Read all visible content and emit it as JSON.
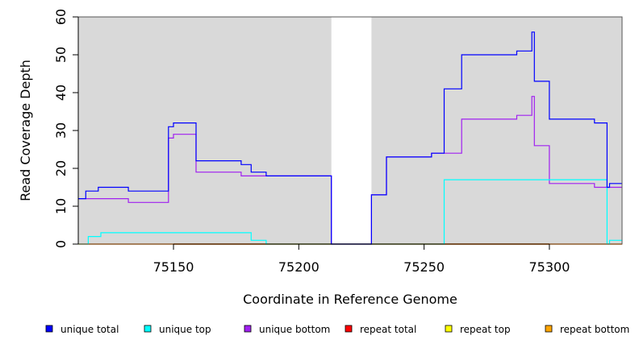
{
  "chart_data": {
    "type": "line",
    "step": true,
    "title": "",
    "xlabel": "Coordinate in Reference Genome",
    "ylabel": "Read Coverage Depth",
    "xlim": [
      75112,
      75329
    ],
    "ylim": [
      0,
      60
    ],
    "xticks": [
      75150,
      75200,
      75250,
      75300
    ],
    "yticks": [
      0,
      10,
      20,
      30,
      40,
      50,
      60
    ],
    "gap_region": [
      75213,
      75229
    ],
    "legend_position": "bottom",
    "series": [
      {
        "name": "unique total",
        "color": "#0000ff",
        "points": [
          [
            75112,
            12
          ],
          [
            75115,
            12
          ],
          [
            75115,
            14
          ],
          [
            75120,
            14
          ],
          [
            75120,
            15
          ],
          [
            75132,
            15
          ],
          [
            75132,
            14
          ],
          [
            75148,
            14
          ],
          [
            75148,
            31
          ],
          [
            75150,
            31
          ],
          [
            75150,
            32
          ],
          [
            75159,
            32
          ],
          [
            75159,
            22
          ],
          [
            75177,
            22
          ],
          [
            75177,
            21
          ],
          [
            75181,
            21
          ],
          [
            75181,
            19
          ],
          [
            75187,
            19
          ],
          [
            75187,
            18
          ],
          [
            75213,
            18
          ],
          [
            75213,
            0
          ],
          [
            75229,
            0
          ],
          [
            75229,
            13
          ],
          [
            75235,
            13
          ],
          [
            75235,
            23
          ],
          [
            75253,
            23
          ],
          [
            75253,
            24
          ],
          [
            75258,
            24
          ],
          [
            75258,
            41
          ],
          [
            75265,
            41
          ],
          [
            75265,
            50
          ],
          [
            75287,
            50
          ],
          [
            75287,
            51
          ],
          [
            75293,
            51
          ],
          [
            75293,
            56
          ],
          [
            75294,
            56
          ],
          [
            75294,
            43
          ],
          [
            75300,
            43
          ],
          [
            75300,
            33
          ],
          [
            75318,
            33
          ],
          [
            75318,
            32
          ],
          [
            75323,
            32
          ],
          [
            75323,
            15
          ],
          [
            75324,
            15
          ],
          [
            75324,
            16
          ],
          [
            75329,
            16
          ]
        ]
      },
      {
        "name": "unique top",
        "color": "#00ffff",
        "points": [
          [
            75112,
            0
          ],
          [
            75116,
            0
          ],
          [
            75116,
            2
          ],
          [
            75121,
            2
          ],
          [
            75121,
            3
          ],
          [
            75181,
            3
          ],
          [
            75181,
            1
          ],
          [
            75187,
            1
          ],
          [
            75187,
            0
          ],
          [
            75258,
            0
          ],
          [
            75258,
            17
          ],
          [
            75323,
            17
          ],
          [
            75323,
            0
          ],
          [
            75324,
            0
          ],
          [
            75324,
            1
          ],
          [
            75329,
            1
          ]
        ]
      },
      {
        "name": "unique bottom",
        "color": "#a020f0",
        "points": [
          [
            75112,
            12
          ],
          [
            75132,
            12
          ],
          [
            75132,
            11
          ],
          [
            75148,
            11
          ],
          [
            75148,
            28
          ],
          [
            75150,
            28
          ],
          [
            75150,
            29
          ],
          [
            75159,
            29
          ],
          [
            75159,
            19
          ],
          [
            75177,
            19
          ],
          [
            75177,
            18
          ],
          [
            75213,
            18
          ],
          [
            75213,
            0
          ],
          [
            75229,
            0
          ],
          [
            75229,
            13
          ],
          [
            75235,
            13
          ],
          [
            75235,
            23
          ],
          [
            75253,
            23
          ],
          [
            75253,
            24
          ],
          [
            75265,
            24
          ],
          [
            75265,
            33
          ],
          [
            75287,
            33
          ],
          [
            75287,
            34
          ],
          [
            75293,
            34
          ],
          [
            75293,
            39
          ],
          [
            75294,
            39
          ],
          [
            75294,
            26
          ],
          [
            75300,
            26
          ],
          [
            75300,
            16
          ],
          [
            75318,
            16
          ],
          [
            75318,
            15
          ],
          [
            75329,
            15
          ]
        ]
      },
      {
        "name": "repeat total",
        "color": "#ff0000",
        "points": [
          [
            75112,
            0
          ],
          [
            75329,
            0
          ]
        ]
      },
      {
        "name": "repeat top",
        "color": "#ffff00",
        "points": [
          [
            75112,
            0
          ],
          [
            75329,
            0
          ]
        ]
      },
      {
        "name": "repeat bottom",
        "color": "#ffa500",
        "points": [
          [
            75112,
            0
          ],
          [
            75329,
            0
          ]
        ]
      }
    ]
  }
}
